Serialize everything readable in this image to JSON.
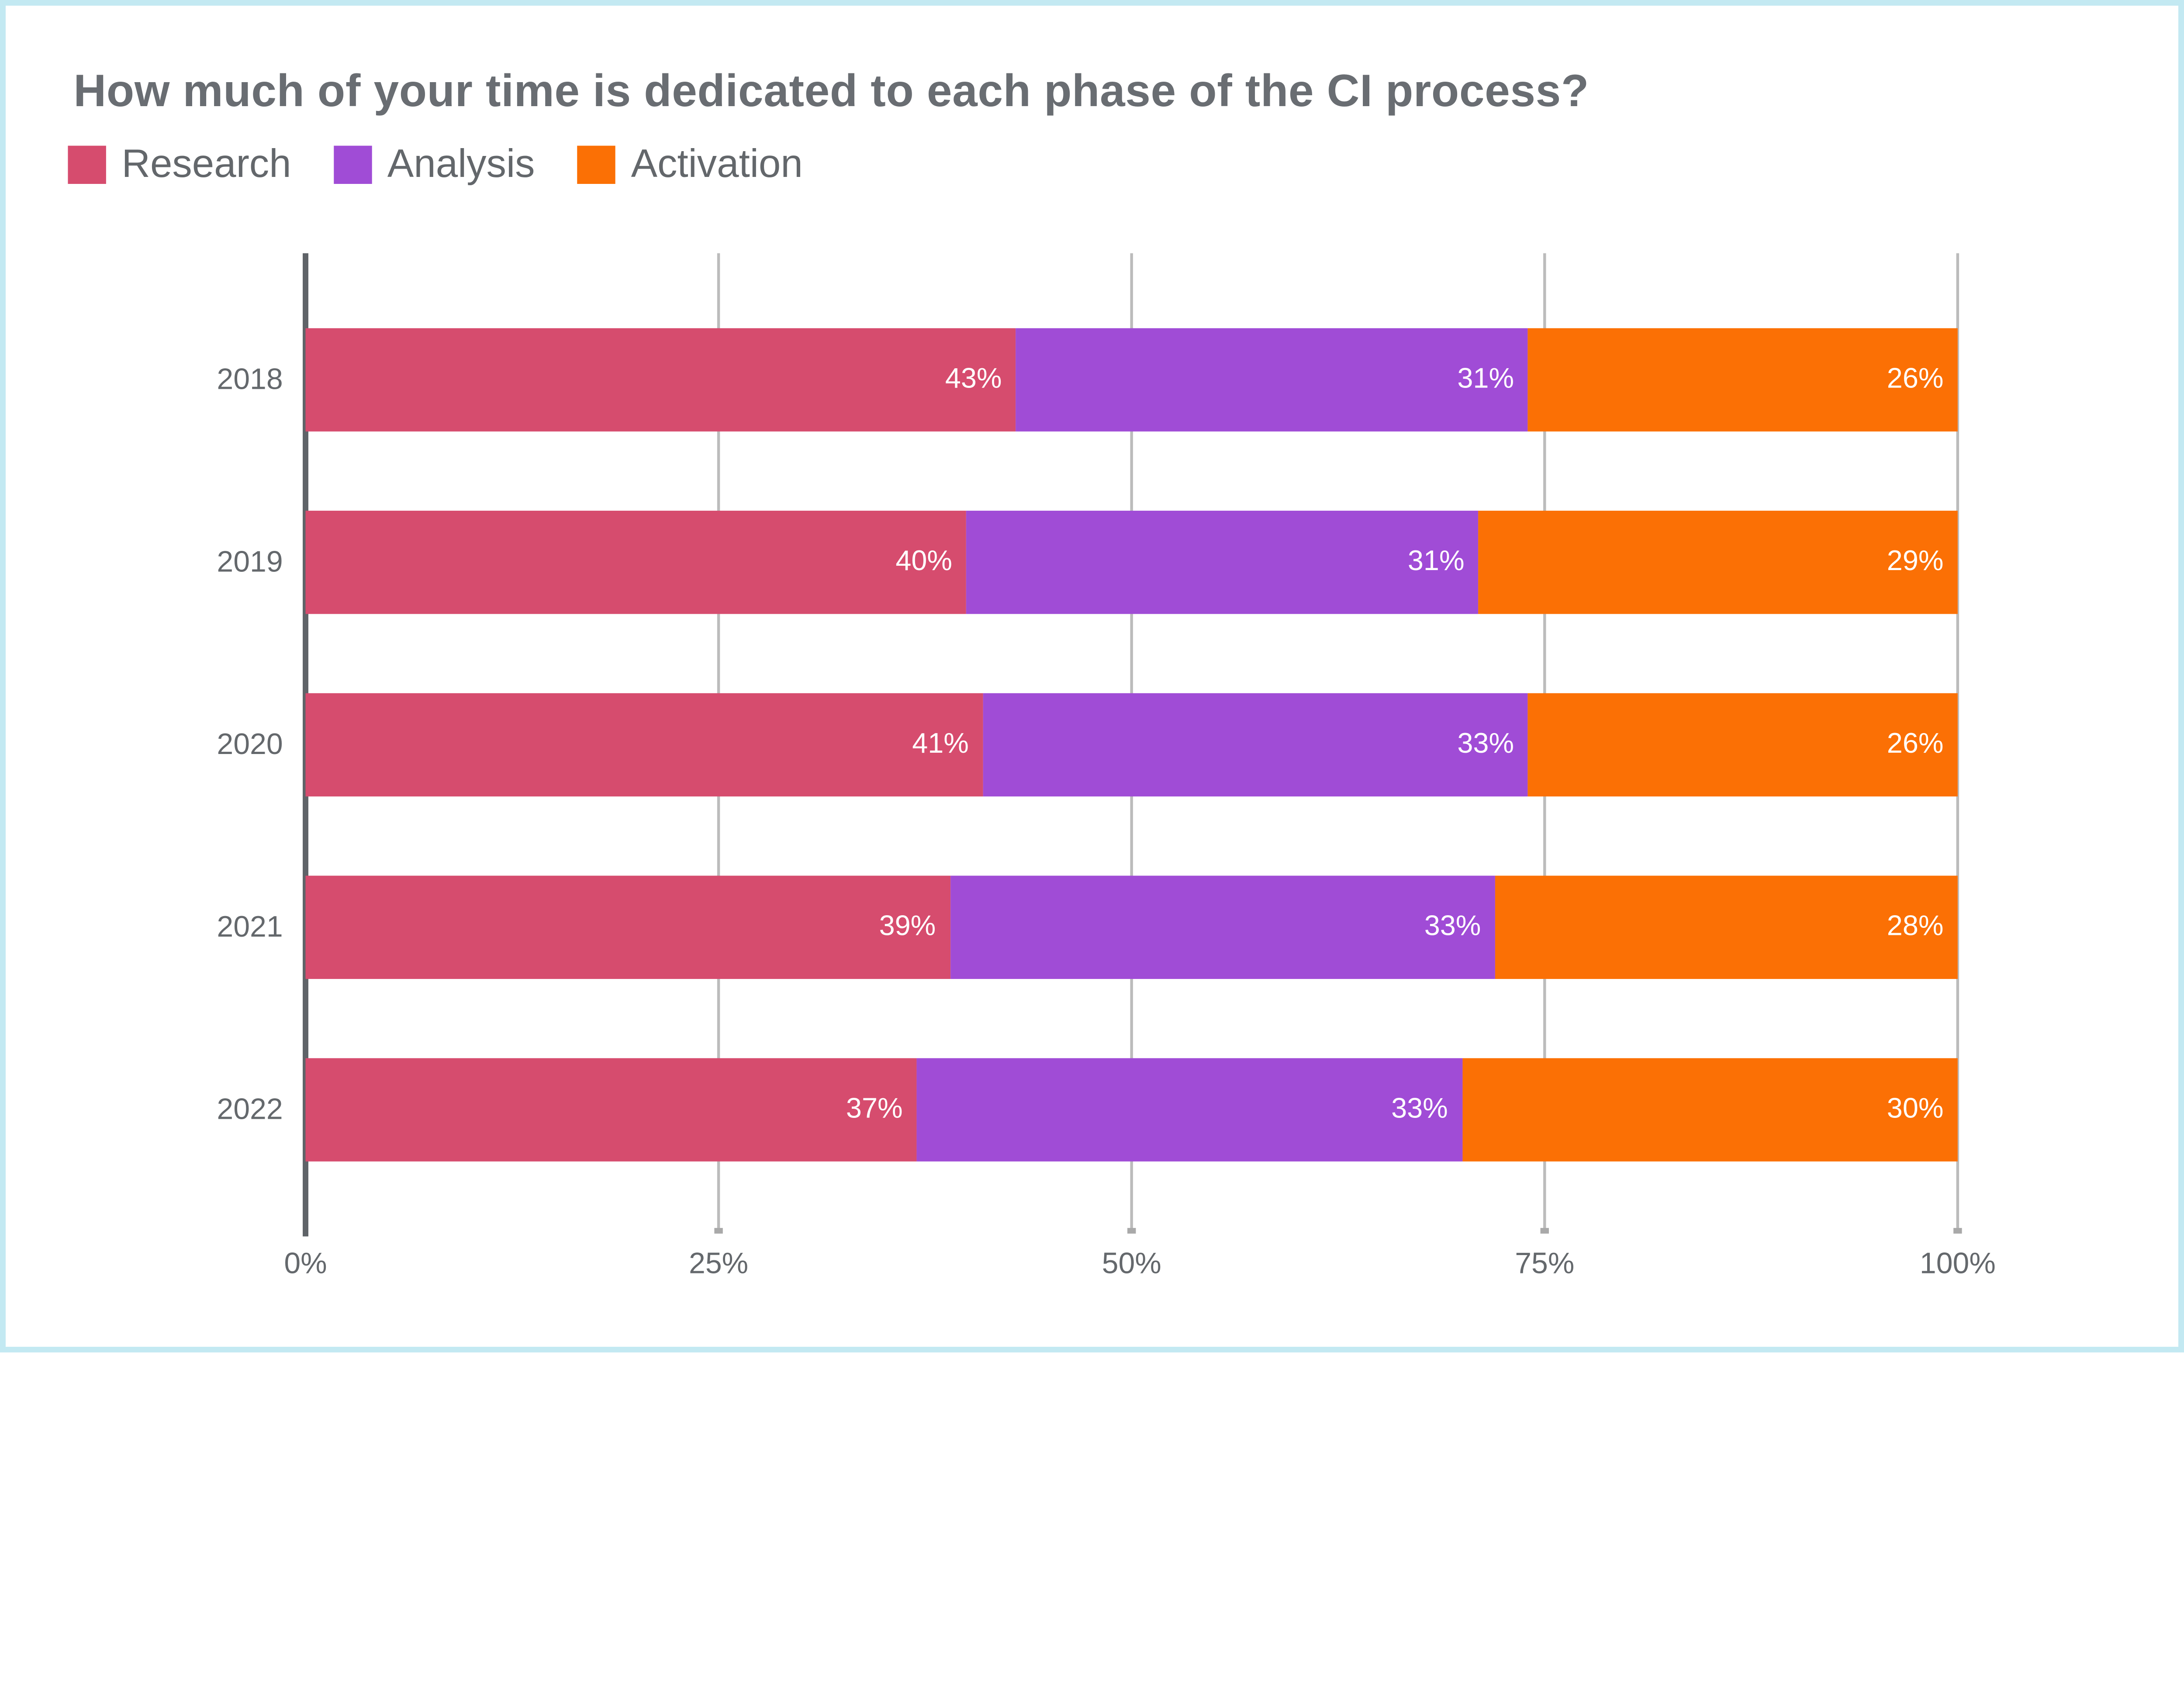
{
  "title": "How much of your time is dedicated to each phase of the CI process?",
  "chart_data": {
    "type": "bar",
    "orientation": "horizontal",
    "stacked": true,
    "title": "How much of your time is dedicated to each phase of the CI process?",
    "categories": [
      "2018",
      "2019",
      "2020",
      "2021",
      "2022"
    ],
    "series": [
      {
        "name": "Research",
        "color": "#D64C6E",
        "values": [
          43,
          40,
          41,
          39,
          37
        ]
      },
      {
        "name": "Analysis",
        "color": "#A04CD6",
        "values": [
          31,
          31,
          33,
          33,
          33
        ]
      },
      {
        "name": "Activation",
        "color": "#FB7005",
        "values": [
          26,
          29,
          26,
          28,
          30
        ]
      }
    ],
    "value_label_suffix": "%",
    "x_ticks": [
      "0%",
      "25%",
      "50%",
      "75%",
      "100%"
    ],
    "xlim": [
      0,
      100
    ],
    "grid": true,
    "legend_position": "top-left",
    "xlabel": "",
    "ylabel": ""
  },
  "colors": {
    "frame": "#C3E9F2",
    "background": "#FFFFFF",
    "title_text": "#696D72",
    "label_text": "#63676B",
    "axis_line": "#5F6368",
    "gridline": "#BCBCBC",
    "tick_mark": "#A9A9A9",
    "bar_label_text": "#FFFFFF"
  }
}
